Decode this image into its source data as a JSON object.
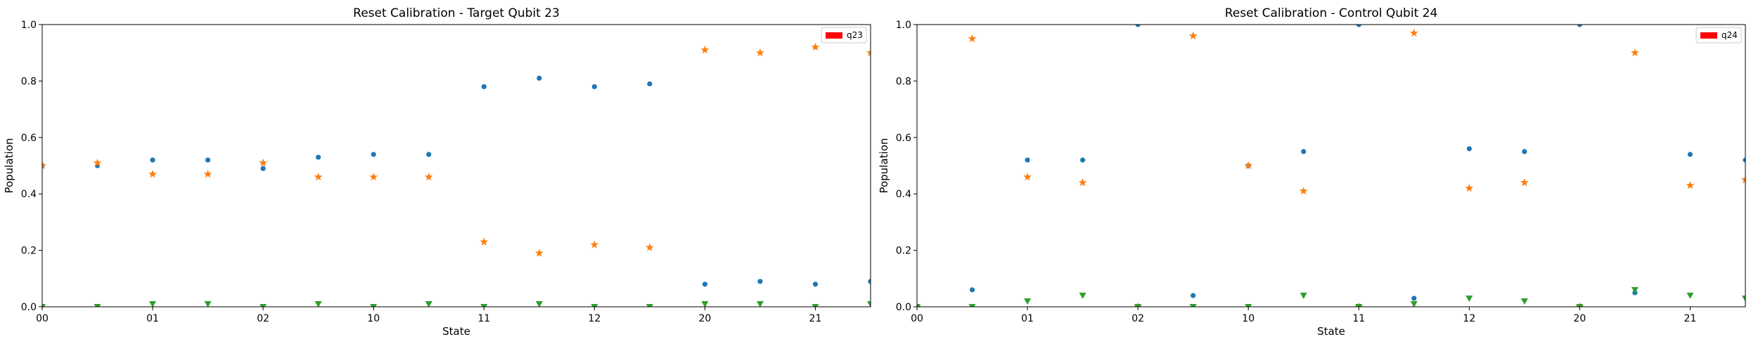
{
  "chart_data": [
    {
      "type": "scatter",
      "title": "Reset Calibration - Target Qubit 23",
      "xlabel": "State",
      "ylabel": "Population",
      "ylim": [
        0,
        1.0
      ],
      "xlim": [
        0,
        7.5
      ],
      "x_tick_labels": [
        "00",
        "01",
        "02",
        "10",
        "11",
        "12",
        "20",
        "21"
      ],
      "y_tick_labels": [
        "0.0",
        "0.2",
        "0.4",
        "0.6",
        "0.8",
        "1.0"
      ],
      "x": [
        0,
        0.5,
        1,
        1.5,
        2,
        2.5,
        3,
        3.5,
        4,
        4.5,
        5,
        5.5,
        6,
        6.5,
        7,
        7.5
      ],
      "legend": {
        "label": "q23",
        "placement": "top-right",
        "color": "#ff0000"
      },
      "grid": false,
      "series": [
        {
          "color": "#1f77b4",
          "marker": "circle",
          "values": [
            0.5,
            0.5,
            0.52,
            0.52,
            0.49,
            0.53,
            0.54,
            0.54,
            0.78,
            0.81,
            0.78,
            0.79,
            0.08,
            0.09,
            0.08,
            0.09
          ]
        },
        {
          "color": "#ff7f0e",
          "marker": "star",
          "values": [
            0.5,
            0.51,
            0.47,
            0.47,
            0.51,
            0.46,
            0.46,
            0.46,
            0.23,
            0.19,
            0.22,
            0.21,
            0.91,
            0.9,
            0.92,
            0.9
          ]
        },
        {
          "color": "#2ca02c",
          "marker": "triangle-down",
          "values": [
            0.0,
            0.0,
            0.01,
            0.01,
            0.0,
            0.01,
            0.0,
            0.01,
            0.0,
            0.01,
            0.0,
            0.0,
            0.01,
            0.01,
            0.0,
            0.01
          ]
        }
      ]
    },
    {
      "type": "scatter",
      "title": "Reset Calibration - Control Qubit 24",
      "xlabel": "State",
      "ylabel": "Population",
      "ylim": [
        0,
        1.0
      ],
      "xlim": [
        0,
        7.5
      ],
      "x_tick_labels": [
        "00",
        "01",
        "02",
        "10",
        "11",
        "12",
        "20",
        "21"
      ],
      "y_tick_labels": [
        "0.0",
        "0.2",
        "0.4",
        "0.6",
        "0.8",
        "1.0"
      ],
      "x": [
        0,
        0.5,
        1,
        1.5,
        2,
        2.5,
        3,
        3.5,
        4,
        4.5,
        5,
        5.5,
        6,
        6.5,
        7,
        7.5
      ],
      "legend": {
        "label": "q24",
        "placement": "top-right",
        "color": "#ff0000"
      },
      "grid": false,
      "series": [
        {
          "color": "#1f77b4",
          "marker": "circle",
          "values": [
            0.0,
            0.06,
            0.52,
            0.52,
            1.0,
            0.04,
            0.5,
            0.55,
            1.0,
            0.03,
            0.56,
            0.55,
            1.0,
            0.05,
            0.54,
            0.52
          ]
        },
        {
          "color": "#ff7f0e",
          "marker": "star",
          "values": [
            0.0,
            0.95,
            0.46,
            0.44,
            0.0,
            0.96,
            0.5,
            0.41,
            0.0,
            0.97,
            0.42,
            0.44,
            0.0,
            0.9,
            0.43,
            0.45
          ]
        },
        {
          "color": "#2ca02c",
          "marker": "triangle-down",
          "values": [
            0.0,
            0.0,
            0.02,
            0.04,
            0.0,
            0.0,
            0.0,
            0.04,
            0.0,
            0.01,
            0.03,
            0.02,
            0.0,
            0.06,
            0.04,
            0.03
          ]
        }
      ]
    }
  ]
}
